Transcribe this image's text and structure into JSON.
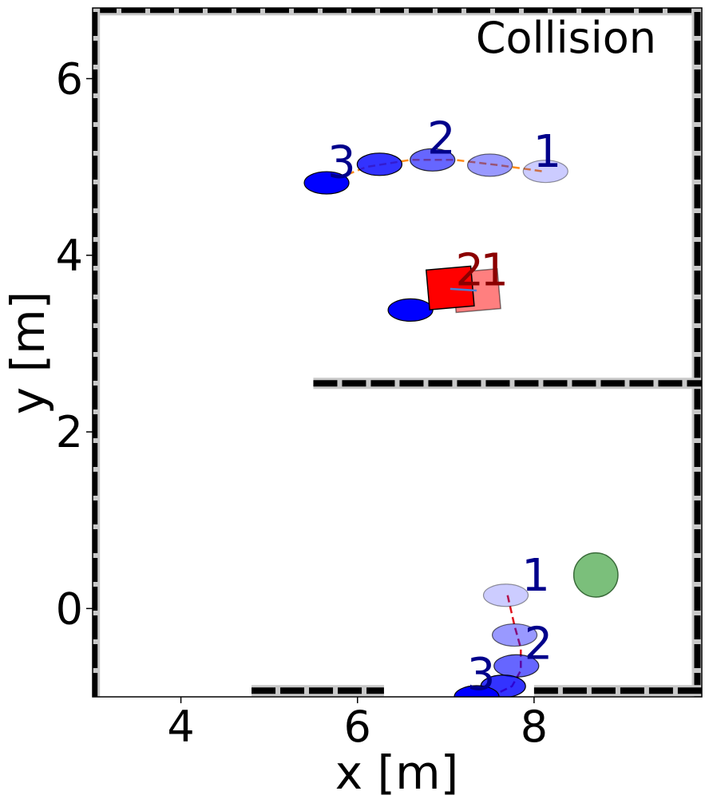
{
  "chart_data": {
    "type": "scatter",
    "title": "Collision",
    "xlabel": "x [m]",
    "ylabel": "y [m]",
    "xlim": [
      3.0,
      9.9
    ],
    "ylim": [
      -1.0,
      6.8
    ],
    "xticks": [
      4,
      6,
      8
    ],
    "yticks": [
      0,
      2,
      4,
      6
    ],
    "walls": [
      {
        "name": "outer-top",
        "x": [
          3.0,
          9.9
        ],
        "y": [
          6.78,
          6.78
        ]
      },
      {
        "name": "outer-right",
        "x": [
          9.85,
          9.85
        ],
        "y": [
          -1.0,
          6.8
        ]
      },
      {
        "name": "outer-left",
        "x": [
          3.02,
          3.02
        ],
        "y": [
          -1.0,
          6.8
        ]
      },
      {
        "name": "inner-shelf",
        "x": [
          5.5,
          9.9
        ],
        "y": [
          2.55,
          2.55
        ]
      },
      {
        "name": "bottom-left-segment",
        "x": [
          4.8,
          6.3
        ],
        "y": [
          -0.93,
          -0.93
        ]
      },
      {
        "name": "bottom-right-segment",
        "x": [
          8.0,
          9.9
        ],
        "y": [
          -0.93,
          -0.93
        ]
      }
    ],
    "agents": [
      {
        "name": "upper-agent",
        "color": "#0000ff",
        "trajectory_color": "#ff8c1a",
        "trajectory": {
          "x": [
            5.65,
            6.1,
            6.6,
            7.1,
            7.6,
            8.1
          ],
          "y": [
            4.82,
            5.0,
            5.08,
            5.08,
            5.02,
            4.95
          ]
        },
        "poses": [
          {
            "x": 8.13,
            "y": 4.95,
            "alpha": 0.2
          },
          {
            "x": 7.5,
            "y": 5.02,
            "alpha": 0.4
          },
          {
            "x": 6.85,
            "y": 5.08,
            "alpha": 0.6
          },
          {
            "x": 6.25,
            "y": 5.03,
            "alpha": 0.8
          },
          {
            "x": 5.65,
            "y": 4.82,
            "alpha": 1.0
          }
        ],
        "labels": [
          {
            "text": "1",
            "x": 8.15,
            "y": 5.0
          },
          {
            "text": "2",
            "x": 6.95,
            "y": 5.15
          },
          {
            "text": "3",
            "x": 5.82,
            "y": 4.88
          }
        ]
      },
      {
        "name": "lower-agent",
        "color": "#0000ff",
        "trajectory_color": "#e0141e",
        "trajectory": {
          "x": [
            7.7,
            7.78,
            7.85,
            7.85,
            7.75,
            7.5
          ],
          "y": [
            0.15,
            -0.2,
            -0.45,
            -0.7,
            -0.88,
            -1.0
          ]
        },
        "poses": [
          {
            "x": 7.68,
            "y": 0.15,
            "alpha": 0.2
          },
          {
            "x": 7.78,
            "y": -0.3,
            "alpha": 0.4
          },
          {
            "x": 7.8,
            "y": -0.65,
            "alpha": 0.6
          },
          {
            "x": 7.65,
            "y": -0.88,
            "alpha": 0.8
          },
          {
            "x": 7.35,
            "y": -1.0,
            "alpha": 1.0
          }
        ],
        "labels": [
          {
            "text": "1",
            "x": 8.02,
            "y": 0.2
          },
          {
            "text": "2",
            "x": 8.05,
            "y": -0.57
          },
          {
            "text": "3",
            "x": 7.4,
            "y": -0.92
          }
        ]
      },
      {
        "name": "static-agent",
        "color": "#0000ff",
        "poses": [
          {
            "x": 6.6,
            "y": 3.38,
            "alpha": 1.0
          }
        ]
      }
    ],
    "obstacle": {
      "name": "red-box",
      "color": "#ff0000",
      "label_color": "#8b0000",
      "poses": [
        {
          "x": 7.35,
          "y": 3.6,
          "angle": -5,
          "alpha": 0.5
        },
        {
          "x": 7.05,
          "y": 3.63,
          "angle": -5,
          "alpha": 1.0
        }
      ],
      "labels": [
        {
          "text": "2",
          "x": 7.27,
          "y": 3.66
        },
        {
          "text": "1",
          "x": 7.55,
          "y": 3.66
        }
      ]
    },
    "goal": {
      "x": 8.7,
      "y": 0.38,
      "radius": 0.25,
      "color": "#7bbf7b"
    }
  }
}
